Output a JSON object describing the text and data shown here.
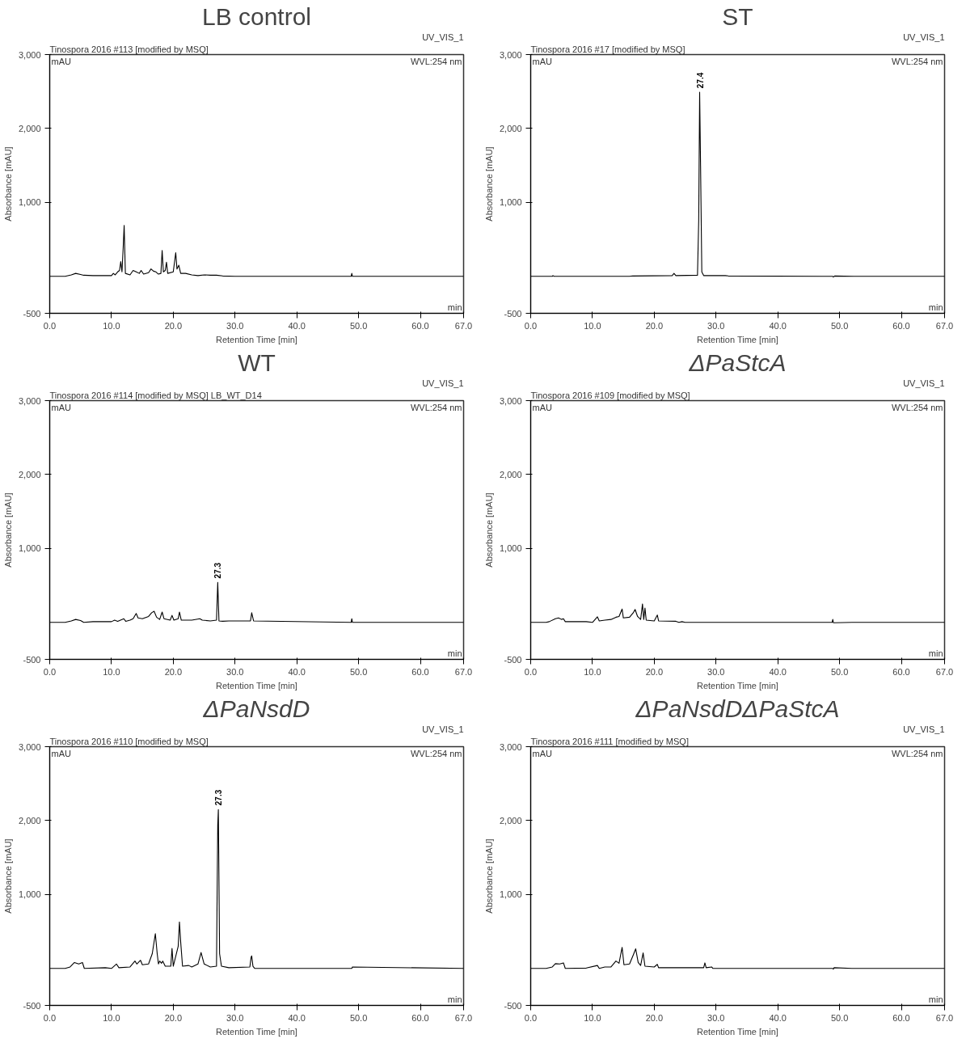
{
  "chart_data": [
    {
      "type": "line",
      "title": "LB control",
      "xlabel": "Retention Time [min]",
      "ylabel": "Absorbance [mAU]",
      "grid": false,
      "marker": "none",
      "line_style": "solid",
      "xlim": [
        0,
        67
      ],
      "ylim": [
        -500,
        3000
      ],
      "xticks": [
        {
          "value": 0,
          "label": "0.0"
        },
        {
          "value": 10,
          "label": "10.0"
        },
        {
          "value": 20,
          "label": "20.0"
        },
        {
          "value": 30,
          "label": "30.0"
        },
        {
          "value": 40,
          "label": "40.0"
        },
        {
          "value": 50,
          "label": "50.0"
        },
        {
          "value": 60,
          "label": "60.0"
        },
        {
          "value": 67,
          "label": "67.0"
        }
      ],
      "yticks": [
        {
          "value": -500,
          "label": "-500"
        },
        {
          "value": 1000,
          "label": "1,000"
        },
        {
          "value": 2000,
          "label": "2,000"
        },
        {
          "value": 3000,
          "label": "3,000"
        }
      ],
      "annotations": [
        "Tinospora 2016 #113 [modified by MSQ]",
        "UV_VIS_1",
        "WVL:254 nm",
        "mAU",
        "min"
      ],
      "series": [
        {
          "color": "#000000",
          "x": [
            0,
            2.5,
            3.5,
            4.2,
            5,
            5.5,
            7,
            10,
            10.3,
            10.6,
            11,
            11.3,
            11.5,
            11.7,
            11.9,
            12.05,
            12.25,
            13,
            13.5,
            14,
            14.5,
            14.8,
            15.2,
            16,
            16.4,
            16.8,
            17.2,
            17.6,
            18,
            18.2,
            18.4,
            18.7,
            18.9,
            19.1,
            20,
            20.4,
            20.6,
            20.9,
            21.2,
            22,
            23,
            24,
            25,
            26,
            27,
            28,
            30,
            48.8,
            48.9,
            49,
            67
          ],
          "values": [
            0,
            0,
            20,
            40,
            25,
            15,
            10,
            10,
            40,
            20,
            60,
            80,
            200,
            60,
            400,
            690,
            40,
            20,
            80,
            60,
            40,
            80,
            30,
            50,
            100,
            70,
            60,
            30,
            40,
            350,
            60,
            80,
            190,
            40,
            60,
            320,
            100,
            150,
            40,
            40,
            20,
            10,
            20,
            15,
            15,
            5,
            0,
            0,
            40,
            0,
            0
          ]
        }
      ]
    },
    {
      "type": "line",
      "title": "ST",
      "xlabel": "Retention Time [min]",
      "ylabel": "Absorbance [mAU]",
      "grid": false,
      "marker": "none",
      "line_style": "solid",
      "xlim": [
        0,
        67
      ],
      "ylim": [
        -500,
        3000
      ],
      "xticks": [
        {
          "value": 0,
          "label": "0.0"
        },
        {
          "value": 10,
          "label": "10.0"
        },
        {
          "value": 20,
          "label": "20.0"
        },
        {
          "value": 30,
          "label": "30.0"
        },
        {
          "value": 40,
          "label": "40.0"
        },
        {
          "value": 50,
          "label": "50.0"
        },
        {
          "value": 60,
          "label": "60.0"
        },
        {
          "value": 67,
          "label": "67.0"
        }
      ],
      "yticks": [
        {
          "value": -500,
          "label": "-500"
        },
        {
          "value": 1000,
          "label": "1,000"
        },
        {
          "value": 2000,
          "label": "2,000"
        },
        {
          "value": 3000,
          "label": "3,000"
        }
      ],
      "annotations": [
        "Tinospora 2016 #17 [modified by MSQ]",
        "UV_VIS_1",
        "WVL:254 nm",
        "mAU",
        "min",
        "27.4"
      ],
      "series": [
        {
          "color": "#000000",
          "x": [
            0,
            3.5,
            3.6,
            3.8,
            16,
            16.5,
            22.9,
            23.2,
            23.5,
            27,
            27.2,
            27.35,
            27.5,
            27.7,
            28,
            31.5,
            32,
            48.9,
            49,
            49.2,
            52.3,
            67
          ],
          "values": [
            0,
            0,
            10,
            0,
            0,
            5,
            10,
            40,
            10,
            15,
            760,
            2490,
            1500,
            60,
            10,
            10,
            5,
            0,
            -10,
            5,
            0,
            0
          ]
        }
      ]
    },
    {
      "type": "line",
      "title": "WT",
      "xlabel": "Retention Time [min]",
      "ylabel": "Absorbance [mAU]",
      "grid": false,
      "marker": "none",
      "line_style": "solid",
      "xlim": [
        0,
        67
      ],
      "ylim": [
        -500,
        3000
      ],
      "xticks": [
        {
          "value": 0,
          "label": "0.0"
        },
        {
          "value": 10,
          "label": "10.0"
        },
        {
          "value": 20,
          "label": "20.0"
        },
        {
          "value": 30,
          "label": "30.0"
        },
        {
          "value": 40,
          "label": "40.0"
        },
        {
          "value": 50,
          "label": "50.0"
        },
        {
          "value": 60,
          "label": "60.0"
        },
        {
          "value": 67,
          "label": "67.0"
        }
      ],
      "yticks": [
        {
          "value": -500,
          "label": "-500"
        },
        {
          "value": 1000,
          "label": "1,000"
        },
        {
          "value": 2000,
          "label": "2,000"
        },
        {
          "value": 3000,
          "label": "3,000"
        }
      ],
      "annotations": [
        "Tinospora 2016 #114 [modified by MSQ]  LB_WT_D14",
        "UV_VIS_1",
        "WVL:254 nm",
        "mAU",
        "min",
        "27.3"
      ],
      "series": [
        {
          "color": "#000000",
          "x": [
            0,
            2.5,
            3.5,
            4.2,
            5,
            5.5,
            7,
            10,
            10.5,
            11,
            12,
            12.3,
            13,
            13.5,
            14,
            14.3,
            15,
            16,
            16.5,
            16.9,
            17.3,
            17.8,
            18.2,
            18.5,
            19.5,
            19.8,
            20.1,
            20.8,
            21,
            21.3,
            23,
            24.3,
            24.7,
            26,
            27,
            27.2,
            27.4,
            28,
            29,
            32.5,
            32.7,
            33,
            48.8,
            48.9,
            49,
            67
          ],
          "values": [
            0,
            0,
            20,
            40,
            25,
            0,
            10,
            10,
            30,
            15,
            50,
            15,
            30,
            50,
            120,
            60,
            50,
            80,
            130,
            150,
            70,
            40,
            140,
            50,
            30,
            95,
            30,
            50,
            140,
            30,
            30,
            50,
            30,
            20,
            30,
            540,
            20,
            15,
            20,
            20,
            130,
            20,
            0,
            50,
            0,
            0
          ]
        }
      ]
    },
    {
      "type": "line",
      "title": "ΔPaStcA",
      "xlabel": "Retention Time [min]",
      "ylabel": "Absorbance [mAU]",
      "grid": false,
      "marker": "none",
      "line_style": "solid",
      "xlim": [
        0,
        67
      ],
      "ylim": [
        -500,
        3000
      ],
      "xticks": [
        {
          "value": 0,
          "label": "0.0"
        },
        {
          "value": 10,
          "label": "10.0"
        },
        {
          "value": 20,
          "label": "20.0"
        },
        {
          "value": 30,
          "label": "30.0"
        },
        {
          "value": 40,
          "label": "40.0"
        },
        {
          "value": 50,
          "label": "50.0"
        },
        {
          "value": 60,
          "label": "60.0"
        },
        {
          "value": 67,
          "label": "67.0"
        }
      ],
      "yticks": [
        {
          "value": -500,
          "label": "-500"
        },
        {
          "value": 1000,
          "label": "1,000"
        },
        {
          "value": 2000,
          "label": "2,000"
        },
        {
          "value": 3000,
          "label": "3,000"
        }
      ],
      "annotations": [
        "Tinospora 2016 #109 [modified by MSQ]",
        "UV_VIS_1",
        "WVL:254 nm",
        "mAU",
        "min"
      ],
      "series": [
        {
          "color": "#000000",
          "x": [
            0,
            2.5,
            3,
            4,
            4.5,
            5,
            5.3,
            5.6,
            7,
            9,
            10,
            10.8,
            11.1,
            12,
            13,
            13.8,
            14.3,
            14.8,
            15,
            16,
            16.6,
            16.9,
            17.3,
            17.8,
            18.1,
            18.3,
            18.5,
            18.7,
            20,
            20.5,
            20.7,
            23.5,
            24,
            24.5,
            25,
            48.8,
            48.9,
            49,
            52,
            67
          ],
          "values": [
            0,
            0,
            10,
            50,
            60,
            40,
            50,
            10,
            10,
            10,
            0,
            75,
            20,
            30,
            40,
            70,
            80,
            180,
            60,
            70,
            130,
            175,
            80,
            40,
            250,
            40,
            195,
            30,
            20,
            100,
            20,
            15,
            0,
            10,
            0,
            0,
            40,
            -5,
            0,
            0
          ]
        }
      ]
    },
    {
      "type": "line",
      "title": "ΔPaNsdD",
      "xlabel": "Retention Time [min]",
      "ylabel": "Absorbance [mAU]",
      "grid": false,
      "marker": "none",
      "line_style": "solid",
      "xlim": [
        0,
        67
      ],
      "ylim": [
        -500,
        3000
      ],
      "xticks": [
        {
          "value": 0,
          "label": "0.0"
        },
        {
          "value": 10,
          "label": "10.0"
        },
        {
          "value": 20,
          "label": "20.0"
        },
        {
          "value": 30,
          "label": "30.0"
        },
        {
          "value": 40,
          "label": "40.0"
        },
        {
          "value": 50,
          "label": "50.0"
        },
        {
          "value": 60,
          "label": "60.0"
        },
        {
          "value": 67,
          "label": "67.0"
        }
      ],
      "yticks": [
        {
          "value": -500,
          "label": "-500"
        },
        {
          "value": 1000,
          "label": "1,000"
        },
        {
          "value": 2000,
          "label": "2,000"
        },
        {
          "value": 3000,
          "label": "3,000"
        }
      ],
      "annotations": [
        "Tinospora 2016 #110 [modified by MSQ]",
        "UV_VIS_1",
        "WVL:254 nm",
        "mAU",
        "min",
        "27.3"
      ],
      "series": [
        {
          "color": "#000000",
          "x": [
            0,
            2.5,
            3.3,
            4,
            4.7,
            5.3,
            5.6,
            9,
            10,
            10.8,
            11.2,
            13,
            13.8,
            14.1,
            14.7,
            15,
            16,
            16.6,
            17.1,
            17.4,
            17.6,
            17.8,
            18.1,
            18.3,
            18.7,
            19.6,
            19.8,
            20,
            20.8,
            21,
            21.2,
            21.5,
            22.5,
            23,
            24,
            24.5,
            25,
            26,
            27,
            27.2,
            27.3,
            27.5,
            27.8,
            29,
            32.4,
            32.6,
            32.7,
            32.9,
            33.2,
            48.9,
            49,
            67
          ],
          "values": [
            0,
            0,
            20,
            80,
            60,
            80,
            0,
            10,
            0,
            60,
            10,
            20,
            100,
            60,
            110,
            50,
            60,
            200,
            470,
            200,
            60,
            100,
            70,
            100,
            30,
            30,
            270,
            30,
            300,
            630,
            360,
            30,
            40,
            20,
            60,
            215,
            60,
            20,
            30,
            1940,
            2150,
            200,
            30,
            10,
            20,
            150,
            170,
            30,
            0,
            0,
            20,
            0
          ]
        }
      ]
    },
    {
      "type": "line",
      "title": "ΔPaNsdDΔPaStcA",
      "xlabel": "Retention Time [min]",
      "ylabel": "Absorbance [mAU]",
      "grid": false,
      "marker": "none",
      "line_style": "solid",
      "xlim": [
        0,
        67
      ],
      "ylim": [
        -500,
        3000
      ],
      "xticks": [
        {
          "value": 0,
          "label": "0.0"
        },
        {
          "value": 10,
          "label": "10.0"
        },
        {
          "value": 20,
          "label": "20.0"
        },
        {
          "value": 30,
          "label": "30.0"
        },
        {
          "value": 40,
          "label": "40.0"
        },
        {
          "value": 50,
          "label": "50.0"
        },
        {
          "value": 60,
          "label": "60.0"
        },
        {
          "value": 67,
          "label": "67.0"
        }
      ],
      "yticks": [
        {
          "value": -500,
          "label": "-500"
        },
        {
          "value": 1000,
          "label": "1,000"
        },
        {
          "value": 2000,
          "label": "2,000"
        },
        {
          "value": 3000,
          "label": "3,000"
        }
      ],
      "annotations": [
        "Tinospora 2016 #111 [modified by MSQ]",
        "UV_VIS_1",
        "WVL:254 nm",
        "mAU",
        "min"
      ],
      "series": [
        {
          "color": "#000000",
          "x": [
            0,
            2.5,
            3.5,
            4,
            4.7,
            5.3,
            5.6,
            9,
            10.8,
            11.1,
            12,
            13,
            13.8,
            14.3,
            14.8,
            15.1,
            16,
            16.6,
            17,
            17.4,
            17.8,
            18.2,
            18.5,
            20,
            20.5,
            20.7,
            23,
            26,
            28,
            28.2,
            28.4,
            29.3,
            29.5,
            48.9,
            49,
            49.1,
            52,
            67
          ],
          "values": [
            0,
            0,
            20,
            65,
            60,
            75,
            0,
            5,
            40,
            0,
            20,
            20,
            100,
            70,
            285,
            50,
            60,
            180,
            265,
            80,
            40,
            210,
            30,
            20,
            55,
            10,
            10,
            10,
            10,
            75,
            10,
            20,
            0,
            0,
            -10,
            10,
            0,
            0
          ]
        }
      ]
    }
  ]
}
